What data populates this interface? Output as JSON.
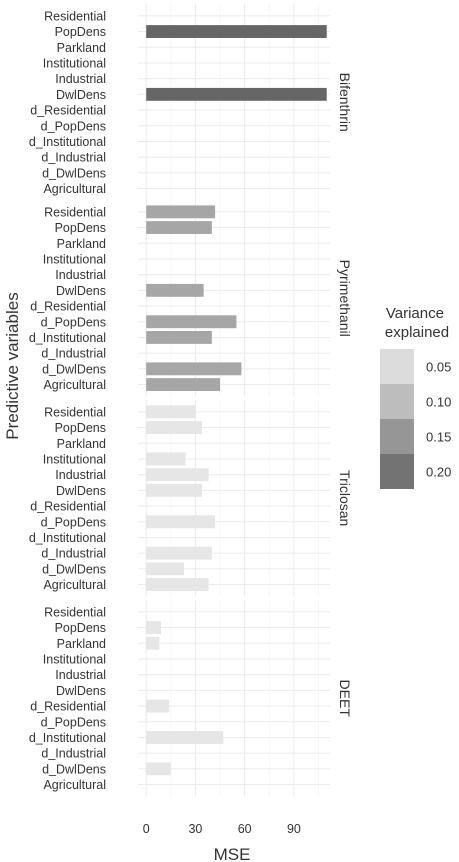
{
  "chart_data": {
    "type": "bar",
    "orientation": "horizontal",
    "faceted": true,
    "xlabel": "MSE",
    "ylabel": "Predictive variables",
    "xticks": [
      0,
      30,
      60,
      90
    ],
    "xlim": [
      -5,
      112
    ],
    "grid": true,
    "legend": {
      "title": "Variance\nexplained",
      "placement": "right",
      "entries": [
        {
          "label": "0.05",
          "color": "#dcdcdc"
        },
        {
          "label": "0.10",
          "color": "#bdbdbd"
        },
        {
          "label": "0.15",
          "color": "#969696"
        },
        {
          "label": "0.20",
          "color": "#737373"
        }
      ]
    },
    "categories": [
      "Residential",
      "PopDens",
      "Parkland",
      "Institutional",
      "Industrial",
      "DwlDens",
      "d_Residential",
      "d_PopDens",
      "d_Institutional",
      "d_Industrial",
      "d_DwlDens",
      "Agricultural"
    ],
    "panels": [
      {
        "name": "Bifenthrin",
        "variance_explained": 0.21,
        "color": "#666666",
        "values": [
          null,
          110,
          null,
          null,
          null,
          110,
          null,
          null,
          null,
          null,
          null,
          null
        ]
      },
      {
        "name": "Pyrimethanil",
        "variance_explained": 0.13,
        "color": "#a6a6a6",
        "values": [
          42,
          40,
          null,
          null,
          null,
          35,
          null,
          55,
          40,
          null,
          58,
          45
        ]
      },
      {
        "name": "Triclosan",
        "variance_explained": 0.04,
        "color": "#e6e6e6",
        "values": [
          30,
          34,
          null,
          24,
          38,
          34,
          null,
          42,
          null,
          40,
          23,
          38
        ]
      },
      {
        "name": "DEET",
        "variance_explained": 0.04,
        "color": "#e6e6e6",
        "values": [
          null,
          9,
          8,
          null,
          null,
          null,
          14,
          null,
          47,
          null,
          15,
          null
        ]
      }
    ]
  }
}
